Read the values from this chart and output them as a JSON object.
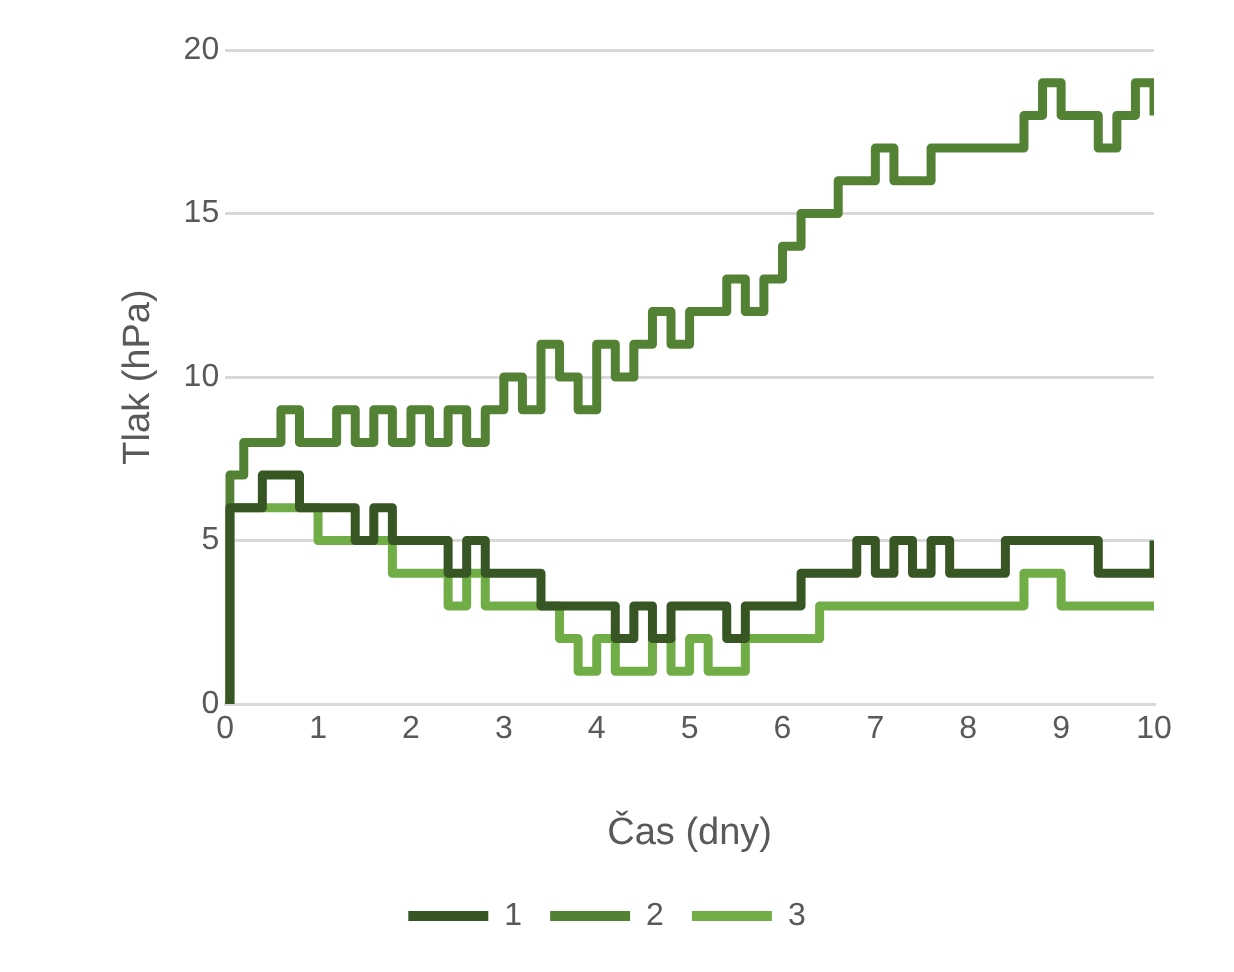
{
  "chart_data": {
    "type": "step",
    "xlabel": "Čas (dny)",
    "ylabel": "Tlak (hPa)",
    "x": [
      0,
      0.05,
      0.2,
      0.4,
      0.6,
      0.8,
      1.0,
      1.2,
      1.4,
      1.6,
      1.8,
      2.0,
      2.2,
      2.4,
      2.6,
      2.8,
      3.0,
      3.2,
      3.4,
      3.6,
      3.8,
      4.0,
      4.2,
      4.4,
      4.6,
      4.8,
      5.0,
      5.2,
      5.4,
      5.6,
      5.8,
      6.0,
      6.2,
      6.4,
      6.6,
      6.8,
      7.0,
      7.2,
      7.4,
      7.6,
      7.8,
      8.0,
      8.2,
      8.4,
      8.6,
      8.8,
      9.0,
      9.2,
      9.4,
      9.6,
      9.8,
      10
    ],
    "series": [
      {
        "name": "1",
        "color": "#375623",
        "values": [
          0,
          6,
          6,
          7,
          7,
          6,
          6,
          6,
          5,
          6,
          5,
          5,
          5,
          4,
          5,
          4,
          4,
          4,
          3,
          3,
          3,
          3,
          2,
          3,
          2,
          3,
          3,
          3,
          2,
          3,
          3,
          3,
          4,
          4,
          4,
          5,
          4,
          5,
          4,
          5,
          4,
          4,
          4,
          5,
          5,
          5,
          5,
          5,
          4,
          4,
          4,
          5
        ]
      },
      {
        "name": "2",
        "color": "#548235",
        "values": [
          0,
          7,
          8,
          8,
          9,
          8,
          8,
          9,
          8,
          9,
          8,
          9,
          8,
          9,
          8,
          9,
          10,
          9,
          11,
          10,
          9,
          11,
          10,
          11,
          12,
          11,
          12,
          12,
          13,
          12,
          13,
          14,
          15,
          15,
          16,
          16,
          17,
          16,
          16,
          17,
          17,
          17,
          17,
          17,
          18,
          19,
          18,
          18,
          17,
          18,
          19,
          18
        ]
      },
      {
        "name": "3",
        "color": "#70ad47",
        "values": [
          0,
          6,
          6,
          6,
          6,
          6,
          5,
          5,
          5,
          5,
          4,
          4,
          4,
          3,
          4,
          3,
          3,
          3,
          3,
          2,
          1,
          2,
          1,
          1,
          2,
          1,
          2,
          1,
          1,
          2,
          2,
          2,
          2,
          3,
          3,
          3,
          3,
          3,
          3,
          3,
          3,
          3,
          3,
          3,
          4,
          4,
          3,
          3,
          3,
          3,
          3,
          3
        ]
      }
    ],
    "xlim": [
      0,
      10
    ],
    "xticks": [
      0,
      1,
      2,
      3,
      4,
      5,
      6,
      7,
      8,
      9,
      10
    ],
    "ylim": [
      0,
      20
    ],
    "yticks": [
      0,
      5,
      10,
      15,
      20
    ],
    "grid": "y",
    "legend": "bottom",
    "marker": "none",
    "line_style": "solid"
  }
}
